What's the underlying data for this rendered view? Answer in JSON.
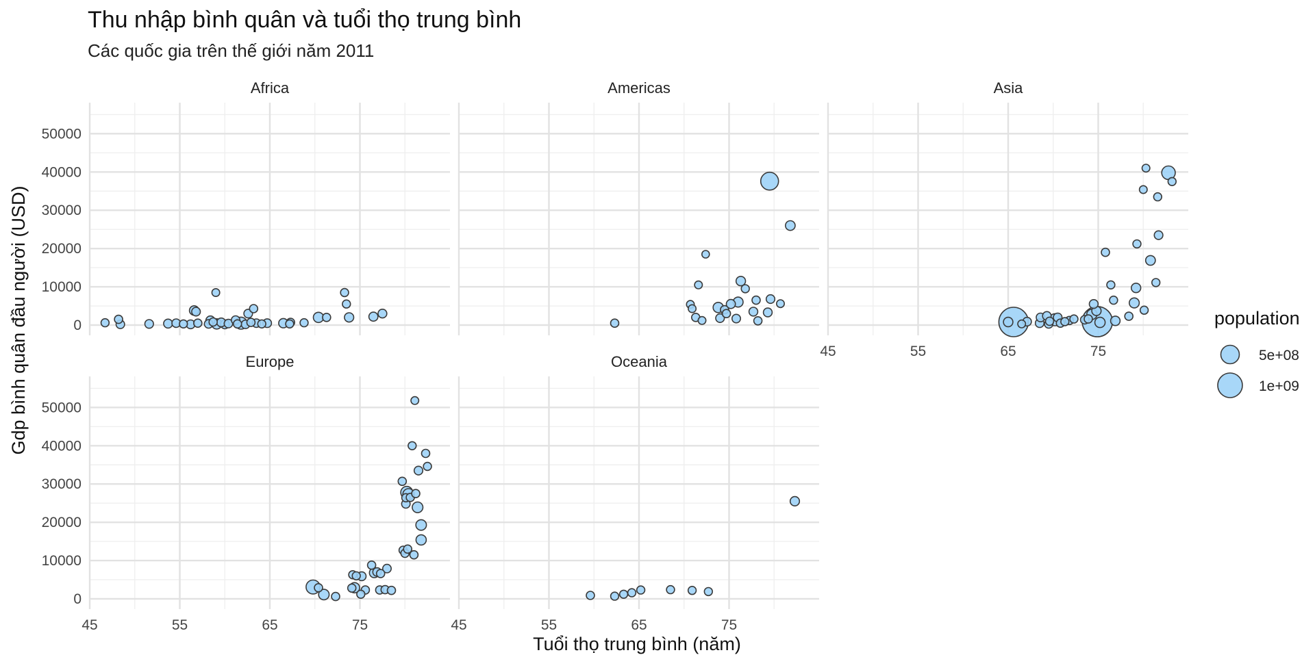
{
  "chart_data": {
    "type": "scatter",
    "title": "Thu nhập bình quân và tuổi thọ trung bình",
    "subtitle": "Các quốc gia trên thế giới năm 2011",
    "xlabel": "Tuổi thọ trung bình (năm)",
    "ylabel": "Gdp bình quân đầu người (USD)",
    "xlim": [
      45,
      85
    ],
    "ylim": [
      0,
      55000
    ],
    "x_ticks": [
      45,
      55,
      65,
      75
    ],
    "y_ticks": [
      0,
      10000,
      20000,
      30000,
      40000,
      50000
    ],
    "x_tick_labels": [
      "45",
      "55",
      "65",
      "75"
    ],
    "y_tick_labels": [
      "0",
      "10000",
      "20000",
      "30000",
      "40000",
      "50000"
    ],
    "grid": true,
    "point_color": "#9fd3f7",
    "point_stroke": "#3a3a3a",
    "legend": {
      "title": "population",
      "position": "right",
      "entries": [
        {
          "label": "5e+08",
          "size": 500000000
        },
        {
          "label": "1e+09",
          "size": 1000000000
        }
      ]
    },
    "facets": [
      {
        "name": "Africa",
        "points": [
          [
            46.7,
            600,
            8
          ],
          [
            48.2,
            1500,
            10
          ],
          [
            48.4,
            200,
            12
          ],
          [
            51.6,
            300,
            14
          ],
          [
            53.7,
            400,
            18
          ],
          [
            54.6,
            500,
            12
          ],
          [
            55.4,
            300,
            9
          ],
          [
            56.2,
            200,
            15
          ],
          [
            56.6,
            3800,
            25
          ],
          [
            56.8,
            3500,
            14
          ],
          [
            57.0,
            500,
            10
          ],
          [
            58.2,
            300,
            12
          ],
          [
            58.4,
            1200,
            20
          ],
          [
            58.7,
            800,
            10
          ],
          [
            59.0,
            8500,
            6
          ],
          [
            59.1,
            300,
            40
          ],
          [
            59.6,
            700,
            16
          ],
          [
            60.0,
            200,
            18
          ],
          [
            60.4,
            400,
            12
          ],
          [
            61.2,
            1300,
            12
          ],
          [
            61.4,
            300,
            10
          ],
          [
            61.8,
            500,
            80
          ],
          [
            62.3,
            200,
            12
          ],
          [
            62.6,
            3000,
            14
          ],
          [
            62.9,
            700,
            10
          ],
          [
            63.2,
            4300,
            10
          ],
          [
            63.5,
            500,
            12
          ],
          [
            64.1,
            300,
            8
          ],
          [
            64.7,
            500,
            14
          ],
          [
            66.5,
            500,
            22
          ],
          [
            67.2,
            300,
            8
          ],
          [
            67.3,
            700,
            10
          ],
          [
            68.8,
            600,
            8
          ],
          [
            70.4,
            2000,
            40
          ],
          [
            71.3,
            2000,
            10
          ],
          [
            73.3,
            8500,
            8
          ],
          [
            73.5,
            5500,
            8
          ],
          [
            73.8,
            2000,
            22
          ],
          [
            76.5,
            2200,
            20
          ],
          [
            77.5,
            3000,
            16
          ]
        ]
      },
      {
        "name": "Americas",
        "points": [
          [
            62.3,
            500,
            10
          ],
          [
            70.7,
            5400,
            6
          ],
          [
            70.9,
            4300,
            6
          ],
          [
            71.3,
            2000,
            10
          ],
          [
            71.6,
            10500,
            6
          ],
          [
            72.0,
            1200,
            6
          ],
          [
            72.4,
            18500,
            4
          ],
          [
            73.8,
            4600,
            40
          ],
          [
            74.0,
            1800,
            14
          ],
          [
            74.5,
            4000,
            10
          ],
          [
            74.7,
            3000,
            10
          ],
          [
            75.2,
            5500,
            20
          ],
          [
            75.8,
            1700,
            12
          ],
          [
            76.0,
            6000,
            35
          ],
          [
            76.3,
            11500,
            25
          ],
          [
            76.8,
            9500,
            8
          ],
          [
            77.7,
            3500,
            16
          ],
          [
            78.0,
            6500,
            10
          ],
          [
            78.2,
            1100,
            10
          ],
          [
            79.3,
            3300,
            15
          ],
          [
            79.5,
            37600,
            310
          ],
          [
            79.6,
            6800,
            14
          ],
          [
            80.7,
            5600,
            6
          ],
          [
            81.8,
            26000,
            30
          ]
        ]
      },
      {
        "name": "Asia",
        "points": [
          [
            65.0,
            800,
            25
          ],
          [
            65.6,
            800,
            1250
          ],
          [
            66.5,
            300,
            6
          ],
          [
            67.1,
            900,
            14
          ],
          [
            68.5,
            500,
            14
          ],
          [
            68.6,
            2000,
            14
          ],
          [
            69.3,
            2400,
            14
          ],
          [
            69.5,
            300,
            12
          ],
          [
            69.6,
            1000,
            10
          ],
          [
            70.2,
            1400,
            80
          ],
          [
            70.5,
            2000,
            14
          ],
          [
            70.8,
            500,
            10
          ],
          [
            71.3,
            900,
            8
          ],
          [
            71.8,
            1200,
            10
          ],
          [
            72.3,
            1600,
            8
          ],
          [
            73.5,
            1400,
            12
          ],
          [
            73.9,
            1600,
            10
          ],
          [
            74.3,
            2800,
            40
          ],
          [
            74.5,
            5500,
            15
          ],
          [
            74.8,
            3700,
            22
          ],
          [
            74.9,
            900,
            1340
          ],
          [
            75.2,
            700,
            40
          ],
          [
            75.8,
            19000,
            10
          ],
          [
            76.4,
            10500,
            8
          ],
          [
            76.7,
            6500,
            8
          ],
          [
            76.9,
            1100,
            25
          ],
          [
            78.4,
            2300,
            10
          ],
          [
            79.0,
            5800,
            35
          ],
          [
            79.2,
            9700,
            25
          ],
          [
            79.3,
            21200,
            8
          ],
          [
            80.0,
            35400,
            6
          ],
          [
            80.1,
            3900,
            8
          ],
          [
            80.3,
            41000,
            6
          ],
          [
            80.8,
            16900,
            30
          ],
          [
            81.4,
            11100,
            8
          ],
          [
            81.6,
            33500,
            8
          ],
          [
            81.7,
            23500,
            14
          ],
          [
            82.8,
            39800,
            127
          ],
          [
            83.2,
            37500,
            8
          ]
        ]
      },
      {
        "name": "Europe",
        "points": [
          [
            69.8,
            3100,
            140
          ],
          [
            70.4,
            2900,
            10
          ],
          [
            71.0,
            1100,
            45
          ],
          [
            72.3,
            600,
            10
          ],
          [
            74.1,
            2800,
            10
          ],
          [
            74.2,
            6300,
            8
          ],
          [
            74.4,
            2900,
            38
          ],
          [
            74.6,
            6000,
            8
          ],
          [
            75.1,
            1200,
            8
          ],
          [
            75.2,
            5900,
            15
          ],
          [
            75.6,
            2300,
            10
          ],
          [
            76.3,
            8800,
            10
          ],
          [
            76.6,
            6800,
            30
          ],
          [
            76.9,
            7000,
            12
          ],
          [
            77.2,
            2300,
            10
          ],
          [
            77.3,
            6600,
            10
          ],
          [
            77.8,
            2400,
            10
          ],
          [
            78.0,
            7900,
            12
          ],
          [
            78.5,
            2200,
            10
          ],
          [
            79.7,
            30700,
            10
          ],
          [
            79.8,
            12700,
            10
          ],
          [
            80.0,
            11900,
            10
          ],
          [
            80.1,
            24800,
            12
          ],
          [
            80.1,
            26400,
            10
          ],
          [
            80.2,
            27800,
            80
          ],
          [
            80.3,
            13000,
            10
          ],
          [
            80.4,
            27300,
            62
          ],
          [
            80.6,
            26500,
            10
          ],
          [
            80.8,
            40000,
            8
          ],
          [
            81.0,
            11500,
            10
          ],
          [
            81.1,
            51800,
            6
          ],
          [
            81.2,
            27500,
            10
          ],
          [
            81.4,
            23900,
            46
          ],
          [
            81.5,
            33500,
            14
          ],
          [
            81.8,
            19300,
            45
          ],
          [
            81.8,
            15400,
            40
          ],
          [
            82.3,
            38000,
            10
          ],
          [
            82.5,
            34600,
            8
          ]
        ]
      },
      {
        "name": "Oceania",
        "points": [
          [
            59.6,
            900,
            10
          ],
          [
            62.3,
            700,
            8
          ],
          [
            63.3,
            1200,
            8
          ],
          [
            64.2,
            1600,
            8
          ],
          [
            65.2,
            2300,
            8
          ],
          [
            68.5,
            2400,
            8
          ],
          [
            70.9,
            2200,
            8
          ],
          [
            72.7,
            1900,
            8
          ],
          [
            82.3,
            25500,
            22
          ]
        ]
      }
    ]
  }
}
